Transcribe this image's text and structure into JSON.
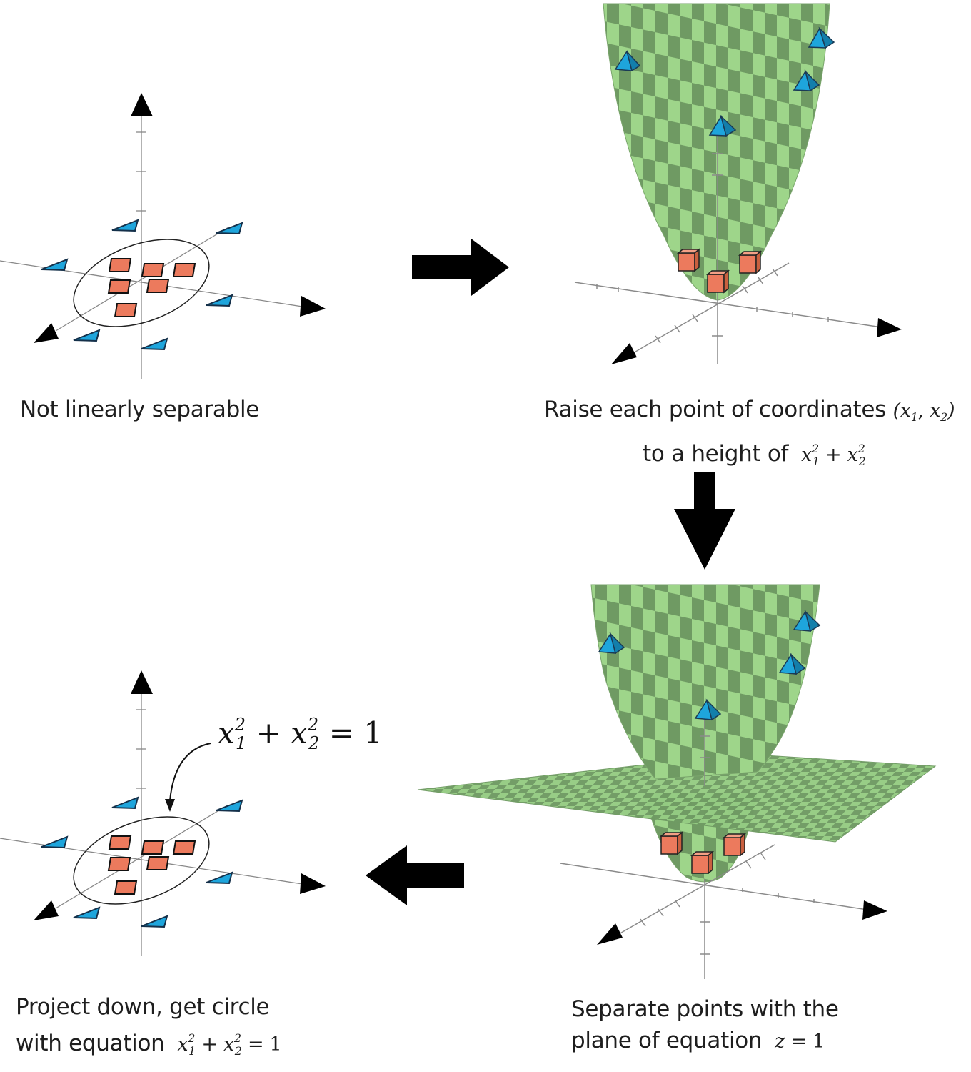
{
  "panels": {
    "top_left": {
      "caption": "Not linearly separable"
    },
    "top_right": {
      "caption_line1": "Raise each point of coordinates",
      "caption_line1_math": "(x1, x2)",
      "caption_line2": "to a height of",
      "caption_line2_math": "x1^2 + x2^2"
    },
    "bottom_right": {
      "caption_line1": "Separate points with the",
      "caption_line2": "plane of equation",
      "caption_line2_math": "z = 1"
    },
    "bottom_left": {
      "caption_line1": "Project down, get circle",
      "caption_line2": "with equation",
      "caption_line2_math": "x1^2 + x2^2 = 1",
      "annotation": "x1^2 + x2^2 = 1"
    }
  },
  "colors": {
    "square_fill": "#ec7a5d",
    "triangle_fill": "#1ea5dc",
    "surface_light": "#9ed58a",
    "surface_dark": "#6f9a63",
    "plane": "#7fb870",
    "arrow": "#000000",
    "axis": "#888888"
  },
  "arrows": [
    {
      "name": "arrow-right",
      "direction": "right"
    },
    {
      "name": "arrow-down",
      "direction": "down"
    },
    {
      "name": "arrow-left",
      "direction": "left"
    }
  ]
}
